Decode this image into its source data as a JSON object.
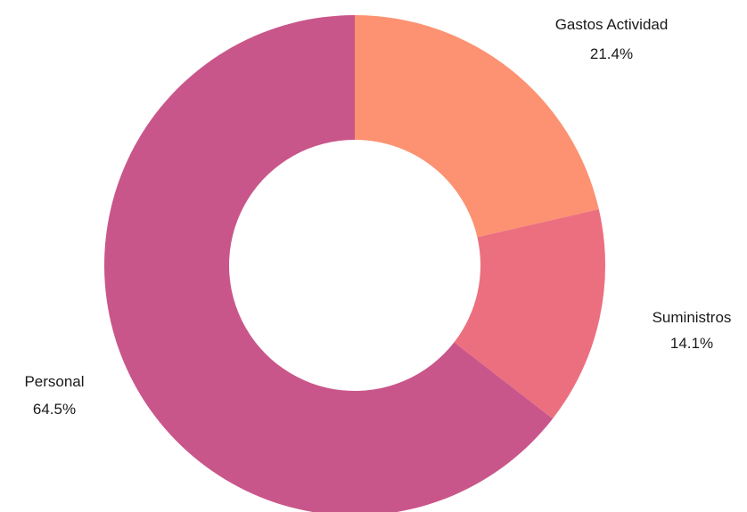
{
  "chart_data": {
    "type": "pie",
    "donut": true,
    "title": "",
    "slices": [
      {
        "label": "Gastos Actividad",
        "percent_label": "21.4%",
        "value": 21.4,
        "color": "#fc9272"
      },
      {
        "label": "Suministros",
        "percent_label": "14.1%",
        "value": 14.1,
        "color": "#ec6f80"
      },
      {
        "label": "Personal",
        "percent_label": "64.5%",
        "value": 64.5,
        "color": "#c9568a"
      }
    ],
    "start": "12 o'clock",
    "direction": "clockwise",
    "legend": "none"
  }
}
